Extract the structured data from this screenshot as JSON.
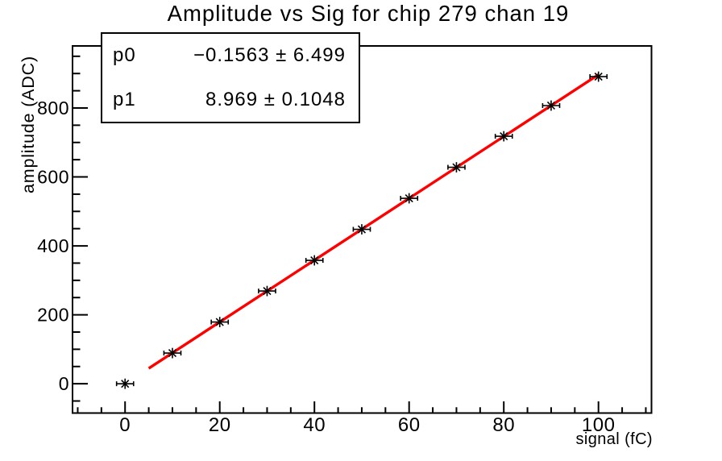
{
  "title": "Amplitude vs Sig for chip 279 chan 19",
  "stats_box": {
    "rows": [
      {
        "name": "p0",
        "value": "−0.1563 ± 6.499"
      },
      {
        "name": "p1",
        "value": "8.969 ± 0.1048"
      }
    ]
  },
  "chart_data": {
    "type": "scatter",
    "title": "Amplitude vs Sig for chip 279 chan 19",
    "xlabel": "signal (fC)",
    "ylabel": "amplitude (ADC)",
    "x": [
      0,
      10,
      20,
      30,
      40,
      50,
      60,
      70,
      80,
      90,
      100
    ],
    "y": [
      0,
      89,
      179,
      269,
      358,
      448,
      538,
      628,
      718,
      807,
      891
    ],
    "xerr": 2,
    "x_ticks": [
      0,
      20,
      40,
      60,
      80,
      100
    ],
    "y_ticks": [
      0,
      200,
      400,
      600,
      800
    ],
    "x_minor_step": 5,
    "y_minor_step": 50,
    "xlim": [
      -11.1,
      111.2
    ],
    "ylim": [
      -85,
      980
    ],
    "grid": false,
    "legend": "none",
    "marker": "asterisk",
    "marker_color": "#000000",
    "fit_line": {
      "p0": -0.1563,
      "p1": 8.969,
      "x_start": 5,
      "x_end": 100,
      "color": "#ff0000"
    }
  }
}
